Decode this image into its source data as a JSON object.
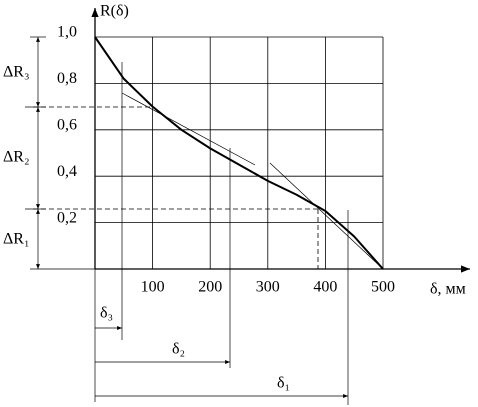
{
  "chart_data": {
    "type": "line",
    "ylabel": "R(δ)",
    "xlabel": "δ, мм",
    "x": [
      0,
      50,
      100,
      150,
      200,
      250,
      300,
      350,
      400,
      450,
      500
    ],
    "series": [
      {
        "color": "#000000",
        "values": [
          1.0,
          0.82,
          0.7,
          0.6,
          0.52,
          0.45,
          0.38,
          0.32,
          0.25,
          0.14,
          0
        ]
      }
    ],
    "xlim": [
      0,
      500
    ],
    "ylim": [
      0,
      1
    ],
    "xticks": [
      100,
      200,
      300,
      400,
      500
    ],
    "yticks": [
      {
        "value": 0.2,
        "label": "0,2"
      },
      {
        "value": 0.4,
        "label": "0,4"
      },
      {
        "value": 0.6,
        "label": "0,6"
      },
      {
        "value": 0.8,
        "label": "0,8"
      },
      {
        "value": 1.0,
        "label": "1,0"
      }
    ],
    "grid": true,
    "annotations": [
      "ΔR₃",
      "ΔR₂",
      "ΔR₁",
      "δ₃",
      "δ₂",
      "δ₁"
    ]
  }
}
